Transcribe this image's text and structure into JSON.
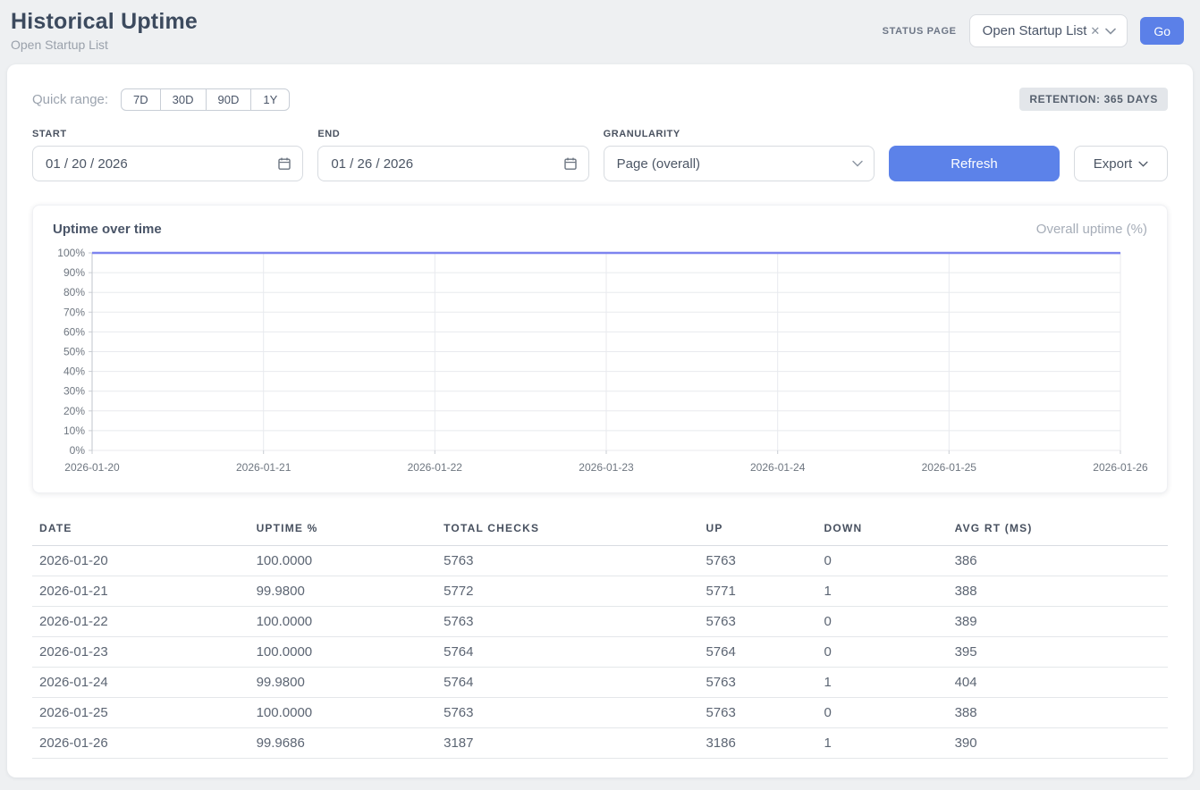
{
  "header": {
    "title": "Historical Uptime",
    "subtitle": "Open Startup List",
    "status_page_label": "STATUS PAGE",
    "status_page_value": "Open Startup List",
    "clear_icon": "✕",
    "go_label": "Go"
  },
  "filters": {
    "quick_range_label": "Quick range:",
    "quick_ranges": [
      "7D",
      "30D",
      "90D",
      "1Y"
    ],
    "retention_badge": "RETENTION: 365 DAYS",
    "start_label": "START",
    "start_value": "01 / 20 / 2026",
    "end_label": "END",
    "end_value": "01 / 26 / 2026",
    "granularity_label": "GRANULARITY",
    "granularity_value": "Page (overall)",
    "refresh_label": "Refresh",
    "export_label": "Export"
  },
  "chart": {
    "title": "Uptime over time",
    "legend": "Overall uptime (%)"
  },
  "chart_data": {
    "type": "line",
    "title": "Uptime over time",
    "legend": "Overall uptime (%)",
    "x": [
      "2026-01-20",
      "2026-01-21",
      "2026-01-22",
      "2026-01-23",
      "2026-01-24",
      "2026-01-25",
      "2026-01-26"
    ],
    "series": [
      {
        "name": "Overall uptime (%)",
        "values": [
          100.0,
          99.98,
          100.0,
          100.0,
          99.98,
          100.0,
          99.9686
        ]
      }
    ],
    "ylim": [
      0,
      100
    ],
    "ytick_step": 10,
    "ytick_suffix": "%",
    "grid": true,
    "legend_position": "top-right",
    "line_color": "#7d84ef"
  },
  "table": {
    "headers": [
      "DATE",
      "UPTIME %",
      "TOTAL CHECKS",
      "UP",
      "DOWN",
      "AVG RT (MS)"
    ],
    "rows": [
      [
        "2026-01-20",
        "100.0000",
        "5763",
        "5763",
        "0",
        "386"
      ],
      [
        "2026-01-21",
        "99.9800",
        "5772",
        "5771",
        "1",
        "388"
      ],
      [
        "2026-01-22",
        "100.0000",
        "5763",
        "5763",
        "0",
        "389"
      ],
      [
        "2026-01-23",
        "100.0000",
        "5764",
        "5764",
        "0",
        "395"
      ],
      [
        "2026-01-24",
        "99.9800",
        "5764",
        "5763",
        "1",
        "404"
      ],
      [
        "2026-01-25",
        "100.0000",
        "5763",
        "5763",
        "0",
        "388"
      ],
      [
        "2026-01-26",
        "99.9686",
        "3187",
        "3186",
        "1",
        "390"
      ]
    ]
  },
  "colors": {
    "accent_button": "#5c82e9",
    "chart_line": "#7d84ef",
    "page_background": "#eef0f2",
    "badge_background": "#e3e6ea"
  }
}
